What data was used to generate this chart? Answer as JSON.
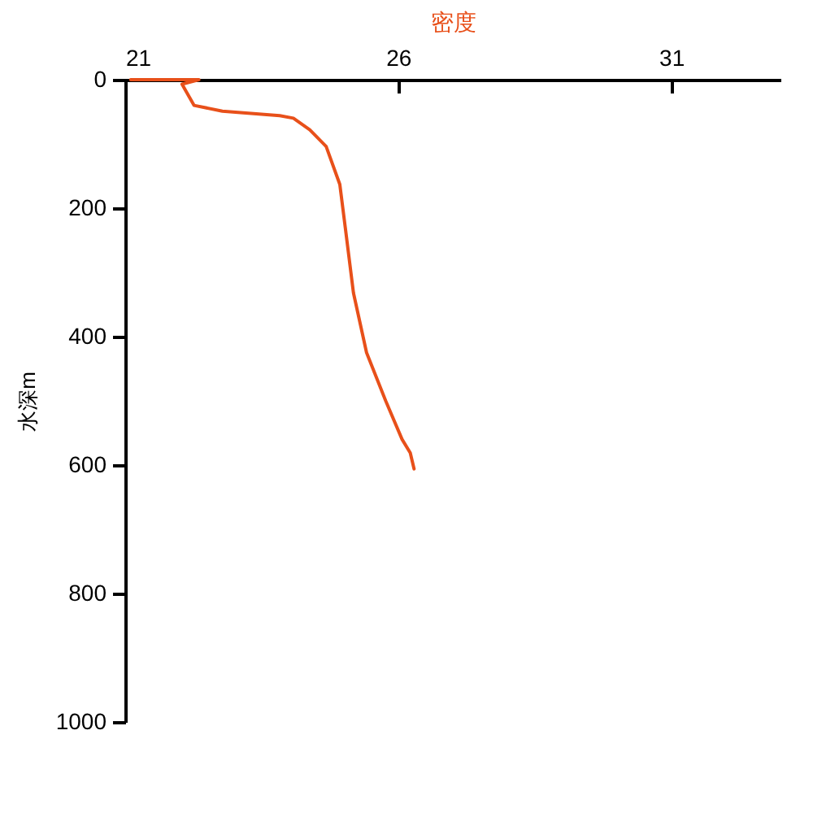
{
  "chart_data": {
    "type": "line",
    "xlabel": "密度",
    "ylabel": "水深m",
    "xlim": [
      21,
      33
    ],
    "xticks": [
      21,
      26,
      31
    ],
    "ylim": [
      1000,
      0
    ],
    "yticks": [
      0,
      200,
      400,
      600,
      800,
      1000
    ],
    "marker": "none",
    "line_style": "solid",
    "series": [
      {
        "color": "#e8501a",
        "x": [
          21.1,
          22.35,
          22.04,
          22.26,
          22.78,
          23.83,
          24.08,
          24.38,
          24.68,
          24.93,
          25.03,
          25.18,
          25.42,
          25.77,
          26.07,
          26.22,
          26.29
        ],
        "values": [
          0,
          0,
          7,
          40,
          49,
          56,
          60,
          78,
          104,
          163,
          230,
          332,
          425,
          500,
          560,
          581,
          606
        ]
      }
    ]
  }
}
